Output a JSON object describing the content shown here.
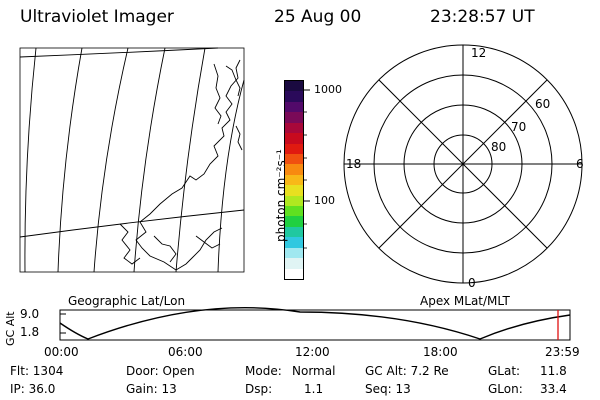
{
  "header": {
    "title": "Ultraviolet Imager",
    "date": "25 Aug 00",
    "time": "23:28:57 UT"
  },
  "colorbar": {
    "label": "photon cm⁻²s⁻¹",
    "ticks": [
      "1000",
      "100"
    ],
    "colors": [
      "#1a0a40",
      "#2a0a5a",
      "#520a6a",
      "#7a0a58",
      "#a8083a",
      "#c80a1e",
      "#e01a10",
      "#f05010",
      "#f88a10",
      "#f8b818",
      "#e8e020",
      "#b0e820",
      "#60e020",
      "#20d040",
      "#20c8a0",
      "#30c8e0",
      "#a0e8f0",
      "#e0f4f4",
      "#ffffff"
    ]
  },
  "polar": {
    "top_label": "12",
    "bottom_label": "0",
    "left_label": "18",
    "right_label": "6",
    "lat_labels": [
      "60",
      "70",
      "80"
    ]
  },
  "labels": {
    "geographic": "Geographic Lat/Lon",
    "apex": "Apex MLat/MLT"
  },
  "altitude_plot": {
    "axis_label": "GC Alt",
    "y_ticks": [
      "9.0",
      "1.8"
    ],
    "x_ticks": [
      "00:00",
      "06:00",
      "12:00",
      "18:00",
      "23:59"
    ]
  },
  "info": {
    "row1": {
      "flt": "Flt: 1304",
      "door": "Door: Open",
      "mode_label": "Mode:",
      "mode_value": "Normal",
      "gcalt": "GC Alt: 7.2 Re",
      "glat_label": "GLat:",
      "glat_value": "11.8"
    },
    "row2": {
      "ip": "IP: 36.0",
      "gain": "Gain: 13",
      "dsp_label": "Dsp:",
      "dsp_value": "1.1",
      "seq": "Seq: 13",
      "glon_label": "GLon:",
      "glon_value": "33.4"
    }
  }
}
